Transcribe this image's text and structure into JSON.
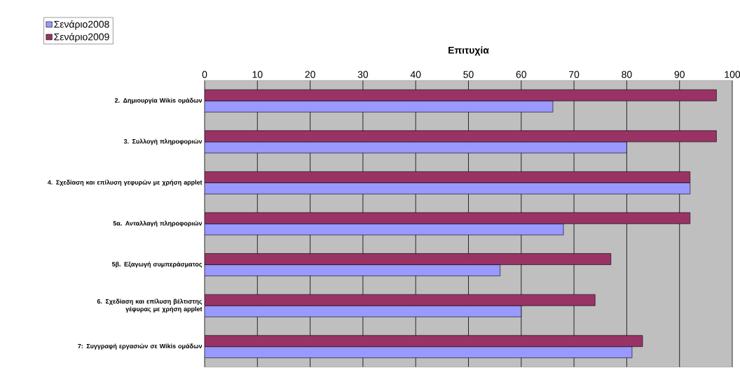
{
  "chart_data": {
    "type": "bar",
    "orientation": "horizontal",
    "title": "Επιτυχία",
    "categories": [
      "2. Δημιουργία Wikis ομάδων",
      "3. Συλλογή πληροφοριών",
      "4. Σχεδίαση και επίλυση γεφυρών με χρήση applet",
      "5α. Ανταλλαγή πληροφοριών",
      "5β. Εξαγωγή συμπεράσματος",
      "6. Σχεδίαση και επίλυση βέλτιστης γέφυρας με χρήση applet",
      "7: Συγγραφή εργασιών σε Wikis ομάδων"
    ],
    "series": [
      {
        "name": "Σενάριο2008",
        "color": "#9999ff",
        "values": [
          66,
          80,
          92,
          68,
          56,
          60,
          81
        ]
      },
      {
        "name": "Σενάριο2009",
        "color": "#993366",
        "values": [
          97,
          97,
          92,
          92,
          77,
          74,
          83
        ]
      }
    ],
    "xlim": [
      0,
      100
    ],
    "xticks": [
      0,
      10,
      20,
      30,
      40,
      50,
      60,
      70,
      80,
      90,
      100
    ],
    "grid": "x",
    "legend": "top left"
  }
}
